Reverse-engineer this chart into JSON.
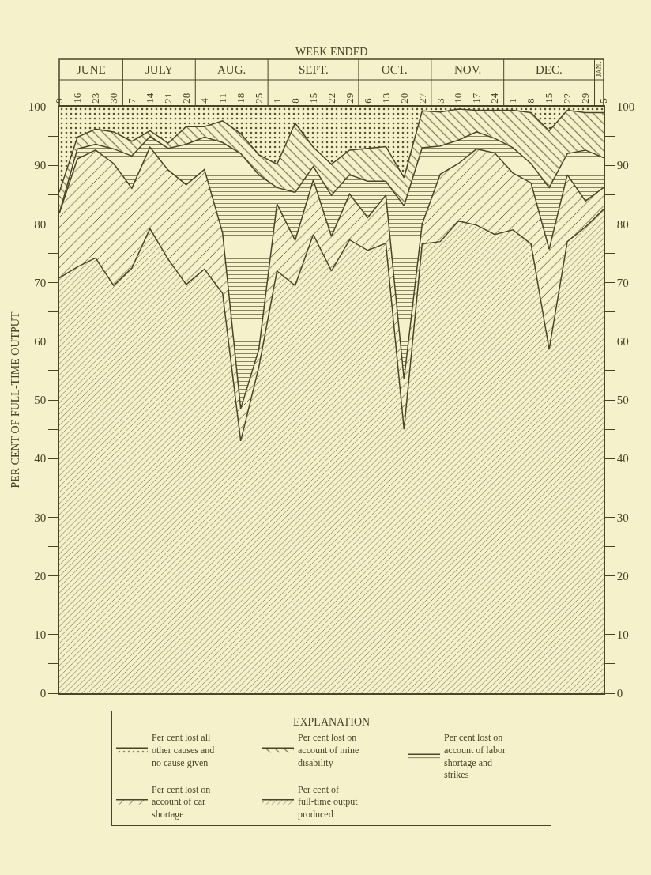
{
  "chart_data": {
    "type": "area",
    "stacked": true,
    "xlabel": "WEEK ENDED",
    "ylabel": "PER CENT OF FULL-TIME OUTPUT",
    "legend_title": "EXPLANATION",
    "legend": "bottom",
    "grid": "x",
    "categories": [
      "9",
      "16",
      "23",
      "30",
      "7",
      "14",
      "21",
      "28",
      "4",
      "11",
      "18",
      "25",
      "1",
      "8",
      "15",
      "22",
      "29",
      "6",
      "13",
      "20",
      "27",
      "3",
      "10",
      "17",
      "24",
      "1",
      "8",
      "15",
      "22",
      "29",
      "5"
    ],
    "annotations": [
      "JUNE",
      "JULY",
      "AUG.",
      "SEPT.",
      "OCT.",
      "NOV.",
      "DEC.",
      "JAN."
    ],
    "ylim": [
      0,
      100
    ],
    "yticks": [
      0,
      {
        "value": 5,
        "label": null
      },
      10,
      {
        "value": 15,
        "label": null
      },
      20,
      {
        "value": 25,
        "label": null
      },
      30,
      {
        "value": 35,
        "label": null
      },
      40,
      {
        "value": 45,
        "label": null
      },
      50,
      {
        "value": 55,
        "label": null
      },
      60,
      {
        "value": 65,
        "label": null
      },
      70,
      {
        "value": 75,
        "label": null
      },
      80,
      {
        "value": 85,
        "label": null
      },
      90,
      {
        "value": 95,
        "label": null
      },
      100
    ],
    "y2lim": [
      0,
      100
    ],
    "y2ticks": [
      0,
      {
        "value": 5,
        "label": null
      },
      10,
      {
        "value": 15,
        "label": null
      },
      20,
      {
        "value": 25,
        "label": null
      },
      30,
      {
        "value": 35,
        "label": null
      },
      40,
      {
        "value": 45,
        "label": null
      },
      50,
      {
        "value": 55,
        "label": null
      },
      60,
      {
        "value": 65,
        "label": null
      },
      70,
      {
        "value": 75,
        "label": null
      },
      80,
      {
        "value": 85,
        "label": null
      },
      90,
      {
        "value": 95,
        "label": null
      },
      100
    ],
    "series": [
      {
        "name": "Per cent of full-time output produced",
        "color": "#5a5331",
        "values": [
          70.8,
          72.7,
          74.2,
          69.5,
          72.5,
          79.2,
          74.0,
          69.7,
          72.3,
          68.2,
          43.0,
          55.6,
          72.0,
          69.5,
          78.2,
          72.0,
          77.3,
          75.5,
          76.7,
          45.0,
          76.6,
          77.0,
          80.5,
          79.8,
          78.2,
          79.0,
          76.6,
          58.6,
          77.0,
          79.5,
          82.5
        ]
      },
      {
        "name": "Per cent lost on account of car shortage",
        "color": "#5a5331",
        "values": [
          11.0,
          18.4,
          18.4,
          20.8,
          13.6,
          13.9,
          15.2,
          17.0,
          17.0,
          10.3,
          5.5,
          3.0,
          11.4,
          7.7,
          9.3,
          5.9,
          7.8,
          5.6,
          8.2,
          8.5,
          3.4,
          11.5,
          9.8,
          13.0,
          13.9,
          9.7,
          10.4,
          17.1,
          11.4,
          4.4,
          3.7
        ]
      },
      {
        "name": "Per cent lost on account of labor shortage and strikes",
        "color": "#5a5331",
        "values": [
          0,
          1.7,
          1.0,
          2.5,
          5.5,
          1.8,
          3.7,
          6.9,
          5.5,
          15.4,
          43.5,
          29.8,
          2.8,
          8.2,
          2.3,
          7.0,
          3.3,
          6.2,
          2.4,
          29.6,
          13.0,
          4.8,
          4.0,
          2.9,
          2.5,
          4.3,
          3.3,
          10.5,
          3.6,
          8.7,
          5.1
        ]
      },
      {
        "name": "Per cent lost on account of mine disability",
        "color": "#5a5331",
        "values": [
          3.6,
          2.0,
          2.6,
          2.9,
          2.5,
          1.0,
          0.9,
          3.0,
          1.8,
          3.7,
          3.4,
          3.4,
          4.0,
          11.8,
          3.3,
          5.3,
          4.2,
          5.6,
          5.9,
          4.8,
          6.3,
          5.8,
          5.3,
          3.7,
          4.8,
          6.4,
          8.7,
          9.7,
          7.4,
          6.4,
          7.7
        ]
      },
      {
        "name": "Per cent lost all other causes and no cause given",
        "color": "#5a5331",
        "values": [
          14.6,
          5.2,
          3.8,
          4.3,
          5.9,
          4.1,
          6.2,
          3.4,
          3.4,
          2.4,
          4.6,
          8.2,
          9.8,
          2.8,
          6.9,
          9.8,
          7.4,
          7.1,
          6.8,
          12.1,
          0.7,
          0.9,
          0.4,
          0.6,
          0.6,
          0.6,
          1.0,
          4.1,
          0.6,
          1.0,
          1.0
        ]
      }
    ]
  }
}
